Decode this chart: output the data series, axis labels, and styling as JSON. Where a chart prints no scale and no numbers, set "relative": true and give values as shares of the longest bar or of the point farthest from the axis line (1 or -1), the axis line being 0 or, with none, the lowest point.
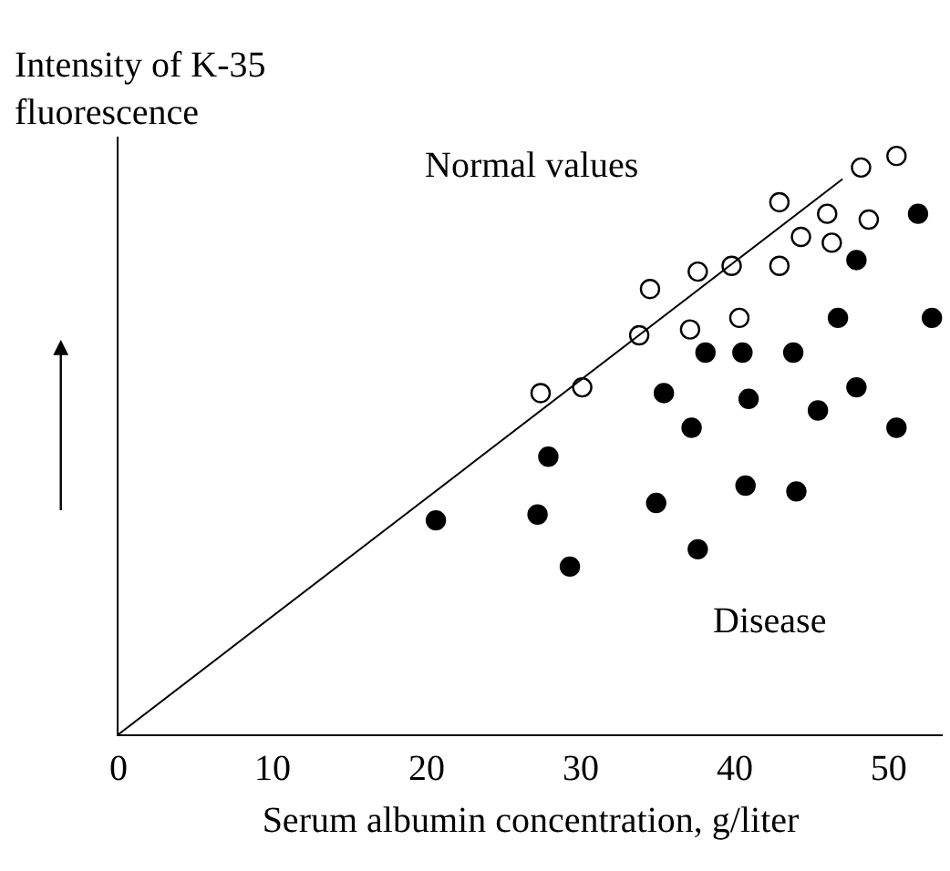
{
  "chart_data": {
    "type": "scatter",
    "relative": true,
    "xlabel": "Serum albumin concentration, g/liter",
    "ylabel": "Intensity of K-35\nfluorescence",
    "xlim": [
      0,
      53.5
    ],
    "xticks": [
      0,
      10,
      20,
      30,
      40,
      50
    ],
    "grid": false,
    "legend": false,
    "series": [
      {
        "name": "Normal values",
        "marker": "circle",
        "color": "#ffffff",
        "x": [
          27.4,
          30.1,
          33.8,
          34.5,
          37.1,
          37.6,
          39.8,
          40.3,
          42.9,
          42.9,
          44.3,
          46.0,
          46.3,
          48.2,
          48.7,
          50.5
        ],
        "values": [
          0.59,
          0.6,
          0.69,
          0.77,
          0.7,
          0.8,
          0.81,
          0.72,
          0.92,
          0.81,
          0.86,
          0.9,
          0.85,
          0.98,
          0.89,
          1.0
        ]
      },
      {
        "name": "Disease",
        "marker": "circle",
        "color": "#000000",
        "x": [
          51.9,
          47.9,
          46.7,
          52.8,
          38.1,
          40.5,
          43.8,
          35.4,
          40.9,
          47.9,
          37.2,
          45.4,
          50.5,
          27.9,
          20.6,
          27.2,
          29.3,
          34.9,
          37.6,
          40.7,
          44.0
        ],
        "values": [
          0.9,
          0.82,
          0.72,
          0.72,
          0.66,
          0.66,
          0.66,
          0.59,
          0.58,
          0.6,
          0.53,
          0.56,
          0.53,
          0.48,
          0.37,
          0.38,
          0.29,
          0.4,
          0.32,
          0.43,
          0.42
        ]
      },
      {
        "type": "line",
        "marker": "none",
        "color": "#000000",
        "x": [
          0,
          47.0
        ],
        "values": [
          0,
          0.96
        ]
      }
    ]
  }
}
